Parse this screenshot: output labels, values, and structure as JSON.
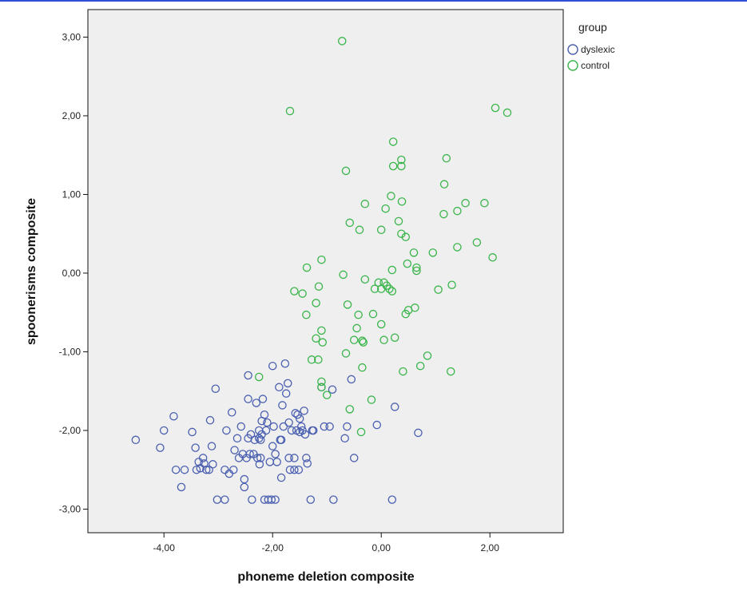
{
  "chart_data": {
    "type": "scatter",
    "xlabel": "phoneme deletion composite",
    "ylabel": "spoonerisms composite",
    "xlim": [
      -5.4,
      3.35
    ],
    "ylim": [
      -3.3,
      3.35
    ],
    "x_ticks": [
      -4,
      -2,
      0,
      2
    ],
    "x_tick_labels": [
      "-4,00",
      "-2,00",
      "0,00",
      "2,00"
    ],
    "y_ticks": [
      -3,
      -2,
      -1,
      0,
      1,
      2,
      3
    ],
    "y_tick_labels": [
      "-3,00",
      "-2,00",
      "-1,00",
      "0,00",
      "1,00",
      "2,00",
      "3,00"
    ],
    "grid": false,
    "background": "#efefef",
    "legend": {
      "title": "group",
      "position": "right",
      "entries": [
        {
          "label": "dyslexic",
          "color": "#4a5fb0"
        },
        {
          "label": "control",
          "color": "#39b54a"
        }
      ]
    },
    "series": [
      {
        "name": "dyslexic",
        "color": "#4a5fb0",
        "marker": "open-circle",
        "points": [
          [
            -4.52,
            -2.12
          ],
          [
            -4.07,
            -2.22
          ],
          [
            -4.0,
            -2.0
          ],
          [
            -3.82,
            -1.82
          ],
          [
            -3.78,
            -2.5
          ],
          [
            -3.68,
            -2.72
          ],
          [
            -3.62,
            -2.5
          ],
          [
            -3.48,
            -2.02
          ],
          [
            -3.42,
            -2.22
          ],
          [
            -3.4,
            -2.5
          ],
          [
            -3.36,
            -2.4
          ],
          [
            -3.33,
            -2.48
          ],
          [
            -3.28,
            -2.35
          ],
          [
            -3.26,
            -2.42
          ],
          [
            -3.22,
            -2.5
          ],
          [
            -3.17,
            -2.5
          ],
          [
            -3.15,
            -1.87
          ],
          [
            -3.12,
            -2.2
          ],
          [
            -3.1,
            -2.43
          ],
          [
            -3.05,
            -1.47
          ],
          [
            -3.02,
            -2.88
          ],
          [
            -2.88,
            -2.88
          ],
          [
            -2.88,
            -2.5
          ],
          [
            -2.85,
            -2.0
          ],
          [
            -2.8,
            -2.55
          ],
          [
            -2.75,
            -1.77
          ],
          [
            -2.72,
            -2.5
          ],
          [
            -2.7,
            -2.25
          ],
          [
            -2.65,
            -2.1
          ],
          [
            -2.62,
            -2.35
          ],
          [
            -2.58,
            -1.95
          ],
          [
            -2.55,
            -2.3
          ],
          [
            -2.52,
            -2.62
          ],
          [
            -2.52,
            -2.72
          ],
          [
            -2.48,
            -2.35
          ],
          [
            -2.45,
            -2.1
          ],
          [
            -2.45,
            -1.3
          ],
          [
            -2.45,
            -1.6
          ],
          [
            -2.42,
            -2.3
          ],
          [
            -2.4,
            -2.05
          ],
          [
            -2.38,
            -2.88
          ],
          [
            -2.35,
            -2.3
          ],
          [
            -2.33,
            -2.12
          ],
          [
            -2.3,
            -1.65
          ],
          [
            -2.28,
            -2.35
          ],
          [
            -2.25,
            -2.1
          ],
          [
            -2.25,
            -2.0
          ],
          [
            -2.24,
            -2.43
          ],
          [
            -2.22,
            -2.35
          ],
          [
            -2.22,
            -2.12
          ],
          [
            -2.2,
            -1.88
          ],
          [
            -2.2,
            -2.05
          ],
          [
            -2.18,
            -1.6
          ],
          [
            -2.15,
            -2.88
          ],
          [
            -2.15,
            -1.8
          ],
          [
            -2.12,
            -2.0
          ],
          [
            -2.1,
            -1.9
          ],
          [
            -2.08,
            -2.88
          ],
          [
            -2.05,
            -2.4
          ],
          [
            -2.02,
            -2.88
          ],
          [
            -2.0,
            -1.18
          ],
          [
            -2.0,
            -2.2
          ],
          [
            -1.98,
            -1.95
          ],
          [
            -1.95,
            -2.3
          ],
          [
            -1.95,
            -2.88
          ],
          [
            -1.92,
            -2.4
          ],
          [
            -1.88,
            -1.45
          ],
          [
            -1.86,
            -2.12
          ],
          [
            -1.84,
            -2.6
          ],
          [
            -1.84,
            -2.12
          ],
          [
            -1.82,
            -1.68
          ],
          [
            -1.8,
            -1.95
          ],
          [
            -1.77,
            -1.15
          ],
          [
            -1.75,
            -1.53
          ],
          [
            -1.72,
            -1.4
          ],
          [
            -1.7,
            -1.9
          ],
          [
            -1.7,
            -2.35
          ],
          [
            -1.68,
            -2.5
          ],
          [
            -1.65,
            -2.0
          ],
          [
            -1.6,
            -2.35
          ],
          [
            -1.6,
            -2.5
          ],
          [
            -1.58,
            -1.78
          ],
          [
            -1.56,
            -2.0
          ],
          [
            -1.54,
            -1.8
          ],
          [
            -1.52,
            -2.5
          ],
          [
            -1.5,
            -1.85
          ],
          [
            -1.5,
            -2.02
          ],
          [
            -1.47,
            -1.95
          ],
          [
            -1.45,
            -2.0
          ],
          [
            -1.42,
            -1.75
          ],
          [
            -1.4,
            -2.05
          ],
          [
            -1.38,
            -2.35
          ],
          [
            -1.36,
            -2.42
          ],
          [
            -1.3,
            -2.88
          ],
          [
            -1.27,
            -2.0
          ],
          [
            -1.25,
            -2.0
          ],
          [
            -1.1,
            -1.45
          ],
          [
            -1.05,
            -1.95
          ],
          [
            -0.95,
            -1.95
          ],
          [
            -0.9,
            -1.48
          ],
          [
            -0.88,
            -2.88
          ],
          [
            -0.67,
            -2.1
          ],
          [
            -0.63,
            -1.95
          ],
          [
            -0.55,
            -1.35
          ],
          [
            -0.5,
            -2.35
          ],
          [
            -0.08,
            -1.93
          ],
          [
            0.2,
            -2.88
          ],
          [
            0.25,
            -1.7
          ],
          [
            0.68,
            -2.03
          ]
        ]
      },
      {
        "name": "control",
        "color": "#39b54a",
        "marker": "open-circle",
        "points": [
          [
            -0.72,
            2.95
          ],
          [
            -1.68,
            2.06
          ],
          [
            2.1,
            2.1
          ],
          [
            2.32,
            2.04
          ],
          [
            0.22,
            1.67
          ],
          [
            1.2,
            1.46
          ],
          [
            0.37,
            1.44
          ],
          [
            -0.65,
            1.3
          ],
          [
            0.22,
            1.36
          ],
          [
            0.37,
            1.36
          ],
          [
            1.16,
            1.13
          ],
          [
            0.18,
            0.98
          ],
          [
            -0.3,
            0.88
          ],
          [
            0.38,
            0.91
          ],
          [
            1.55,
            0.89
          ],
          [
            1.9,
            0.89
          ],
          [
            0.08,
            0.82
          ],
          [
            1.4,
            0.79
          ],
          [
            1.15,
            0.75
          ],
          [
            0.32,
            0.66
          ],
          [
            -0.58,
            0.64
          ],
          [
            -0.4,
            0.55
          ],
          [
            0.0,
            0.55
          ],
          [
            0.37,
            0.5
          ],
          [
            0.45,
            0.46
          ],
          [
            1.76,
            0.39
          ],
          [
            1.4,
            0.33
          ],
          [
            0.95,
            0.26
          ],
          [
            0.6,
            0.26
          ],
          [
            2.05,
            0.2
          ],
          [
            -1.1,
            0.17
          ],
          [
            0.48,
            0.12
          ],
          [
            -1.37,
            0.07
          ],
          [
            0.65,
            0.07
          ],
          [
            0.65,
            0.03
          ],
          [
            0.2,
            0.04
          ],
          [
            -0.7,
            -0.02
          ],
          [
            -0.3,
            -0.08
          ],
          [
            0.05,
            -0.12
          ],
          [
            -0.05,
            -0.12
          ],
          [
            0.1,
            -0.16
          ],
          [
            -0.12,
            -0.2
          ],
          [
            1.3,
            -0.15
          ],
          [
            -1.15,
            -0.17
          ],
          [
            0.15,
            -0.2
          ],
          [
            0.0,
            -0.2
          ],
          [
            1.05,
            -0.21
          ],
          [
            -1.6,
            -0.23
          ],
          [
            -1.45,
            -0.26
          ],
          [
            0.2,
            -0.23
          ],
          [
            -1.2,
            -0.38
          ],
          [
            -0.62,
            -0.4
          ],
          [
            0.62,
            -0.44
          ],
          [
            0.5,
            -0.47
          ],
          [
            -0.42,
            -0.53
          ],
          [
            -0.15,
            -0.52
          ],
          [
            0.45,
            -0.52
          ],
          [
            -1.38,
            -0.53
          ],
          [
            0.0,
            -0.65
          ],
          [
            -0.45,
            -0.7
          ],
          [
            -1.1,
            -0.73
          ],
          [
            -1.2,
            -0.83
          ],
          [
            -0.5,
            -0.85
          ],
          [
            -0.35,
            -0.86
          ],
          [
            -0.33,
            -0.88
          ],
          [
            0.05,
            -0.85
          ],
          [
            0.25,
            -0.82
          ],
          [
            -1.08,
            -0.88
          ],
          [
            -0.65,
            -1.02
          ],
          [
            0.85,
            -1.05
          ],
          [
            -1.16,
            -1.1
          ],
          [
            -1.28,
            -1.1
          ],
          [
            0.72,
            -1.18
          ],
          [
            -0.35,
            -1.2
          ],
          [
            0.4,
            -1.25
          ],
          [
            1.28,
            -1.25
          ],
          [
            -2.25,
            -1.32
          ],
          [
            -1.1,
            -1.38
          ],
          [
            -1.1,
            -1.45
          ],
          [
            -1.0,
            -1.55
          ],
          [
            -0.18,
            -1.61
          ],
          [
            -0.58,
            -1.73
          ],
          [
            -0.37,
            -2.02
          ]
        ]
      }
    ]
  }
}
